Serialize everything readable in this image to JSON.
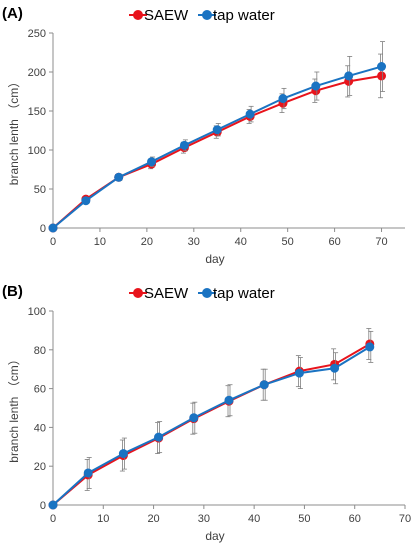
{
  "chart_data": [
    {
      "type": "line",
      "panel_label": "(A)",
      "xlabel": "day",
      "ylabel": "branch lenth （cm）",
      "xlim": [
        0,
        75
      ],
      "ylim": [
        0,
        250
      ],
      "xticks": [
        "0",
        "10",
        "20",
        "30",
        "40",
        "50",
        "60",
        "70"
      ],
      "yticks": [
        "0",
        "50",
        "100",
        "150",
        "200",
        "250"
      ],
      "grid": false,
      "legend_position": "top",
      "series": [
        {
          "name": "SAEW",
          "color": "#e8141c",
          "x": [
            0,
            7,
            14,
            21,
            28,
            35,
            42,
            49,
            56,
            63,
            70
          ],
          "y": [
            0,
            37,
            65,
            82,
            103,
            123,
            143,
            160,
            176,
            188,
            195
          ],
          "err": [
            0,
            3,
            3,
            6,
            7,
            8,
            9,
            12,
            15,
            20,
            28
          ]
        },
        {
          "name": "tap water",
          "color": "#1a73c2",
          "x": [
            0,
            7,
            14,
            21,
            28,
            35,
            42,
            49,
            56,
            63,
            70
          ],
          "y": [
            0,
            35,
            65,
            85,
            106,
            126,
            146,
            166,
            182,
            195,
            207
          ],
          "err": [
            0,
            3,
            4,
            6,
            7,
            8,
            10,
            13,
            18,
            25,
            32
          ]
        }
      ]
    },
    {
      "type": "line",
      "panel_label": "(B)",
      "xlabel": "day",
      "ylabel": "branch lenth （cm）",
      "xlim": [
        0,
        70
      ],
      "ylim": [
        0,
        100
      ],
      "xticks": [
        "0",
        "10",
        "20",
        "30",
        "40",
        "50",
        "60",
        "70"
      ],
      "yticks": [
        "0",
        "20",
        "40",
        "60",
        "80",
        "100"
      ],
      "grid": false,
      "legend_position": "top",
      "series": [
        {
          "name": "SAEW",
          "color": "#e8141c",
          "x": [
            0,
            7,
            14,
            21,
            28,
            35,
            42,
            49,
            56,
            63
          ],
          "y": [
            0,
            15.5,
            25.5,
            34.5,
            44.5,
            53.5,
            62,
            69,
            72.5,
            83
          ],
          "err": [
            0,
            8,
            8,
            8,
            8,
            8,
            8,
            8,
            8,
            8
          ]
        },
        {
          "name": "tap water",
          "color": "#1a73c2",
          "x": [
            0,
            7,
            14,
            21,
            28,
            35,
            42,
            49,
            56,
            63
          ],
          "y": [
            0,
            16.5,
            26.5,
            35,
            45,
            54,
            62,
            68,
            70.5,
            81.5
          ],
          "err": [
            0,
            8,
            8,
            8,
            8,
            8,
            8,
            8,
            8,
            8
          ]
        }
      ]
    }
  ]
}
